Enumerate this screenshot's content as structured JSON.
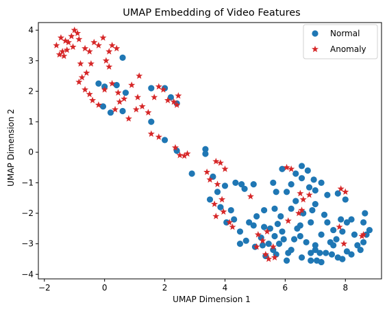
{
  "chart_data": {
    "type": "scatter",
    "title": "UMAP Embedding of Video Features",
    "xlabel": "UMAP Dimension 1",
    "ylabel": "UMAP Dimension 2",
    "xlim": [
      -2.2,
      9.2
    ],
    "ylim": [
      -4.15,
      4.25
    ],
    "xticks": [
      -2,
      0,
      2,
      4,
      6,
      8
    ],
    "yticks": [
      -4,
      -3,
      -2,
      -1,
      0,
      1,
      2,
      3,
      4
    ],
    "grid": false,
    "legend": "top-right",
    "series": [
      {
        "name": "Normal",
        "marker": "circle",
        "color": "#1f77b4",
        "points": [
          [
            -0.2,
            2.25
          ],
          [
            0.0,
            2.15
          ],
          [
            0.6,
            3.1
          ],
          [
            0.4,
            2.2
          ],
          [
            0.7,
            1.95
          ],
          [
            -0.05,
            1.5
          ],
          [
            0.2,
            1.3
          ],
          [
            0.6,
            1.35
          ],
          [
            1.55,
            2.1
          ],
          [
            2.0,
            2.1
          ],
          [
            2.2,
            1.8
          ],
          [
            2.4,
            1.6
          ],
          [
            1.55,
            1.0
          ],
          [
            2.0,
            0.4
          ],
          [
            2.4,
            0.05
          ],
          [
            2.9,
            -0.7
          ],
          [
            3.35,
            0.1
          ],
          [
            3.35,
            -0.05
          ],
          [
            3.6,
            -0.8
          ],
          [
            4.35,
            -1.0
          ],
          [
            4.0,
            -1.1
          ],
          [
            3.75,
            -1.3
          ],
          [
            4.55,
            -1.05
          ],
          [
            4.65,
            -1.2
          ],
          [
            4.95,
            -1.05
          ],
          [
            3.5,
            -1.55
          ],
          [
            3.85,
            -1.8
          ],
          [
            4.2,
            -1.9
          ],
          [
            4.05,
            -2.3
          ],
          [
            4.3,
            -2.2
          ],
          [
            4.5,
            -2.6
          ],
          [
            4.5,
            -3.0
          ],
          [
            4.8,
            -2.3
          ],
          [
            4.7,
            -2.9
          ],
          [
            5.0,
            -3.1
          ],
          [
            5.25,
            -3.05
          ],
          [
            5.35,
            -3.4
          ],
          [
            5.6,
            -3.2
          ],
          [
            4.95,
            -2.4
          ],
          [
            5.3,
            -2.45
          ],
          [
            5.5,
            -2.5
          ],
          [
            5.65,
            -2.75
          ],
          [
            5.9,
            -2.6
          ],
          [
            5.8,
            -3.0
          ],
          [
            5.95,
            -2.85
          ],
          [
            5.7,
            -3.35
          ],
          [
            6.05,
            -3.55
          ],
          [
            6.2,
            -3.2
          ],
          [
            6.3,
            -2.85
          ],
          [
            6.5,
            -2.75
          ],
          [
            6.7,
            -2.95
          ],
          [
            6.55,
            -3.45
          ],
          [
            6.85,
            -3.3
          ],
          [
            7.0,
            -3.2
          ],
          [
            7.05,
            -3.55
          ],
          [
            7.2,
            -3.6
          ],
          [
            7.35,
            -3.3
          ],
          [
            7.55,
            -3.35
          ],
          [
            7.75,
            -3.45
          ],
          [
            7.9,
            -3.5
          ],
          [
            8.05,
            -3.25
          ],
          [
            8.2,
            -3.35
          ],
          [
            8.4,
            -3.05
          ],
          [
            8.5,
            -3.2
          ],
          [
            8.6,
            -2.95
          ],
          [
            8.7,
            -2.7
          ],
          [
            8.8,
            -2.55
          ],
          [
            8.6,
            -2.3
          ],
          [
            8.65,
            -2.0
          ],
          [
            8.2,
            -2.2
          ],
          [
            8.05,
            -2.3
          ],
          [
            7.9,
            -2.6
          ],
          [
            7.7,
            -2.85
          ],
          [
            7.6,
            -2.55
          ],
          [
            7.4,
            -2.3
          ],
          [
            7.3,
            -2.05
          ],
          [
            7.2,
            -2.7
          ],
          [
            7.5,
            -2.95
          ],
          [
            7.85,
            -2.2
          ],
          [
            8.0,
            -1.55
          ],
          [
            7.75,
            -1.35
          ],
          [
            7.4,
            -1.4
          ],
          [
            7.0,
            -1.25
          ],
          [
            7.2,
            -1.0
          ],
          [
            7.0,
            -1.7
          ],
          [
            6.9,
            -1.9
          ],
          [
            6.85,
            -2.3
          ],
          [
            6.6,
            -2.0
          ],
          [
            6.5,
            -2.4
          ],
          [
            6.35,
            -1.6
          ],
          [
            6.2,
            -1.85
          ],
          [
            6.05,
            -1.3
          ],
          [
            6.2,
            -1.05
          ],
          [
            6.35,
            -0.7
          ],
          [
            6.55,
            -0.45
          ],
          [
            6.75,
            -0.6
          ],
          [
            6.55,
            -0.85
          ],
          [
            6.95,
            -0.9
          ],
          [
            6.8,
            -1.15
          ],
          [
            5.9,
            -0.55
          ],
          [
            5.6,
            -1.0
          ],
          [
            5.7,
            -1.3
          ],
          [
            5.65,
            -1.85
          ],
          [
            5.85,
            -2.1
          ],
          [
            5.3,
            -1.9
          ],
          [
            5.05,
            -2.1
          ],
          [
            7.0,
            -3.05
          ],
          [
            7.15,
            -3.3
          ],
          [
            6.1,
            -3.3
          ],
          [
            5.2,
            -2.8
          ],
          [
            5.45,
            -3.0
          ],
          [
            6.85,
            -3.55
          ],
          [
            8.3,
            -2.7
          ],
          [
            7.6,
            -3.05
          ],
          [
            6.4,
            -2.5
          ],
          [
            5.75,
            -2.35
          ]
        ]
      },
      {
        "name": "Anomaly",
        "marker": "star",
        "color": "#d62728",
        "points": [
          [
            -1.6,
            3.5
          ],
          [
            -1.45,
            3.75
          ],
          [
            -1.4,
            3.3
          ],
          [
            -1.3,
            3.65
          ],
          [
            -1.5,
            3.2
          ],
          [
            -1.35,
            3.15
          ],
          [
            -1.2,
            3.6
          ],
          [
            -1.1,
            3.8
          ],
          [
            -1.0,
            4.0
          ],
          [
            -0.9,
            3.9
          ],
          [
            -0.85,
            3.7
          ],
          [
            -1.05,
            3.45
          ],
          [
            -1.25,
            3.35
          ],
          [
            -0.8,
            2.9
          ],
          [
            -0.65,
            3.4
          ],
          [
            -0.5,
            3.3
          ],
          [
            -0.35,
            3.6
          ],
          [
            -0.2,
            3.5
          ],
          [
            -0.05,
            3.75
          ],
          [
            0.15,
            3.3
          ],
          [
            0.25,
            3.5
          ],
          [
            0.4,
            3.4
          ],
          [
            0.05,
            3.0
          ],
          [
            0.15,
            2.8
          ],
          [
            -0.45,
            2.9
          ],
          [
            -0.6,
            2.6
          ],
          [
            -0.75,
            2.45
          ],
          [
            -0.85,
            2.3
          ],
          [
            -0.65,
            2.05
          ],
          [
            -0.5,
            1.9
          ],
          [
            -0.4,
            1.7
          ],
          [
            -0.2,
            1.55
          ],
          [
            0.0,
            2.05
          ],
          [
            0.25,
            2.25
          ],
          [
            0.45,
            1.95
          ],
          [
            0.5,
            1.65
          ],
          [
            0.35,
            1.4
          ],
          [
            0.65,
            1.75
          ],
          [
            0.9,
            2.2
          ],
          [
            1.15,
            2.5
          ],
          [
            1.1,
            1.8
          ],
          [
            1.25,
            1.5
          ],
          [
            1.45,
            1.3
          ],
          [
            1.65,
            1.8
          ],
          [
            1.8,
            2.15
          ],
          [
            1.95,
            2.05
          ],
          [
            2.1,
            1.7
          ],
          [
            2.3,
            1.65
          ],
          [
            2.4,
            1.55
          ],
          [
            2.45,
            1.85
          ],
          [
            1.05,
            1.4
          ],
          [
            0.8,
            1.1
          ],
          [
            1.55,
            0.6
          ],
          [
            1.8,
            0.5
          ],
          [
            2.35,
            0.15
          ],
          [
            2.5,
            -0.1
          ],
          [
            2.65,
            -0.12
          ],
          [
            2.75,
            -0.05
          ],
          [
            3.4,
            -0.65
          ],
          [
            3.7,
            -0.3
          ],
          [
            3.85,
            -0.35
          ],
          [
            4.0,
            -0.55
          ],
          [
            3.5,
            -0.9
          ],
          [
            3.75,
            -1.05
          ],
          [
            3.9,
            -1.55
          ],
          [
            3.95,
            -1.95
          ],
          [
            4.15,
            -2.3
          ],
          [
            4.25,
            -2.45
          ],
          [
            3.7,
            -2.1
          ],
          [
            3.65,
            -1.7
          ],
          [
            4.85,
            -1.45
          ],
          [
            5.1,
            -2.7
          ],
          [
            5.4,
            -2.6
          ],
          [
            5.05,
            -3.1
          ],
          [
            5.25,
            -2.9
          ],
          [
            5.35,
            -3.35
          ],
          [
            5.6,
            -3.1
          ],
          [
            5.65,
            -3.45
          ],
          [
            5.45,
            -3.5
          ],
          [
            6.1,
            -2.25
          ],
          [
            6.55,
            -1.9
          ],
          [
            6.5,
            -1.35
          ],
          [
            6.8,
            -1.4
          ],
          [
            6.45,
            -2.0
          ],
          [
            6.6,
            -1.55
          ],
          [
            6.05,
            -0.5
          ],
          [
            6.2,
            -0.55
          ],
          [
            7.85,
            -1.2
          ],
          [
            8.0,
            -1.3
          ],
          [
            7.8,
            -2.45
          ],
          [
            7.95,
            -3.0
          ],
          [
            8.55,
            -2.75
          ],
          [
            8.6,
            -2.7
          ]
        ]
      }
    ]
  }
}
